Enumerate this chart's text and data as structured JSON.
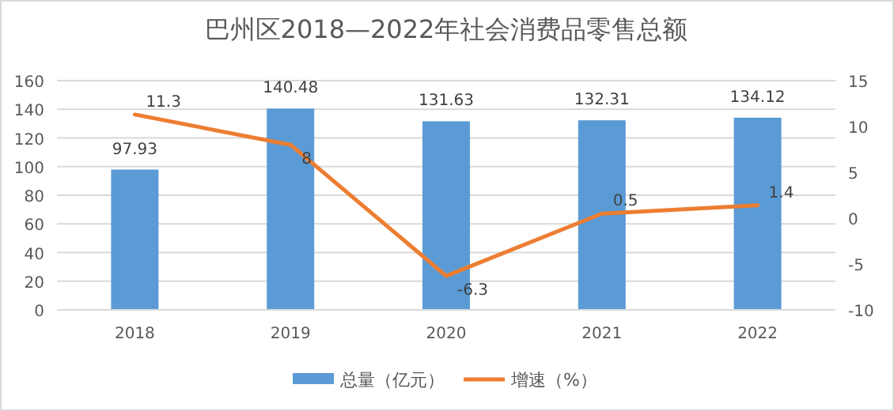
{
  "chart_data": {
    "type": "bar",
    "title": "巴州区2018—2022年社会消费品零售总额",
    "categories": [
      "2018",
      "2019",
      "2020",
      "2021",
      "2022"
    ],
    "series": [
      {
        "name": "总量（亿元）",
        "color": "#5b9bd5",
        "values": [
          97.93,
          140.48,
          131.63,
          132.31,
          134.12
        ]
      },
      {
        "name": "增速（%）",
        "type": "line",
        "axis": "y2",
        "color": "#ed7d31",
        "values": [
          11.3,
          8,
          -6.3,
          0.5,
          1.4
        ]
      }
    ],
    "ylim": [
      0,
      160
    ],
    "yticks": [
      0,
      20,
      40,
      60,
      80,
      100,
      120,
      140,
      160
    ],
    "y2lim": [
      -10,
      15
    ],
    "y2ticks": [
      -10,
      -5,
      0,
      5,
      10,
      15
    ],
    "grid": "y",
    "data_labels": true,
    "legend": "bottom"
  }
}
